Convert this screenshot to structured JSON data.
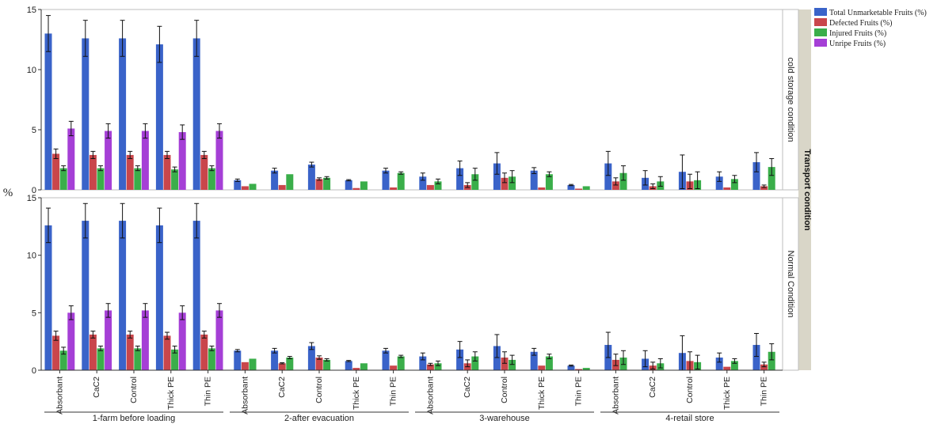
{
  "chart_data": {
    "type": "bar",
    "ylabel": "%",
    "ylim": [
      0,
      15
    ],
    "yticks": [
      0,
      5,
      10,
      15
    ],
    "grid": false,
    "legend_position": "top-right",
    "facet_label": "Transport condition",
    "groups": [
      {
        "label": "1-farm before loading",
        "categories": [
          "Absorbant",
          "CaC2",
          "Control",
          "Thick PE",
          "Thin PE"
        ]
      },
      {
        "label": "2-after evacuation",
        "categories": [
          "Absorbant",
          "CaC2",
          "Control",
          "Thick PE",
          "Thin PE"
        ]
      },
      {
        "label": "3-warehouse",
        "categories": [
          "Absorbant",
          "CaC2",
          "Control",
          "Thick PE",
          "Thin PE"
        ]
      },
      {
        "label": "4-retail store",
        "categories": [
          "Absorbant",
          "CaC2",
          "Control",
          "Thick PE",
          "Thin PE"
        ]
      }
    ],
    "series_meta": [
      {
        "name": "Total Unmarketable Fruits (%)",
        "color": "#3a63c9"
      },
      {
        "name": "Defected Fruits (%)",
        "color": "#c9464b"
      },
      {
        "name": "Injured Fruits (%)",
        "color": "#3aae4a"
      },
      {
        "name": "Unripe Fruits (%)",
        "color": "#a53fd6"
      }
    ],
    "panels": [
      {
        "label": "cold storage condition",
        "series": [
          {
            "name": "Total Unmarketable Fruits (%)",
            "values": [
              13.0,
              12.6,
              12.6,
              12.1,
              12.6,
              0.8,
              1.6,
              2.1,
              0.8,
              1.6,
              1.1,
              1.8,
              2.2,
              1.6,
              0.4,
              2.2,
              1.0,
              1.5,
              1.1,
              2.3
            ],
            "errors": [
              1.5,
              1.5,
              1.5,
              1.5,
              1.5,
              0.1,
              0.2,
              0.2,
              0.05,
              0.2,
              0.3,
              0.6,
              0.9,
              0.25,
              0.05,
              1.0,
              0.6,
              1.4,
              0.4,
              0.8
            ]
          },
          {
            "name": "Defected Fruits (%)",
            "values": [
              3.0,
              2.9,
              2.9,
              2.9,
              2.9,
              0.3,
              0.4,
              0.9,
              0.15,
              0.2,
              0.4,
              0.4,
              1.0,
              0.2,
              0.1,
              0.7,
              0.3,
              0.7,
              0.2,
              0.3
            ],
            "errors": [
              0.4,
              0.3,
              0.3,
              0.3,
              0.3,
              0.05,
              0.05,
              0.1,
              0.05,
              0.05,
              0.1,
              0.2,
              0.4,
              0.05,
              0.05,
              0.3,
              0.2,
              0.6,
              0.1,
              0.1
            ],
            "has_error": [
              true,
              true,
              true,
              true,
              true,
              false,
              false,
              true,
              false,
              false,
              false,
              true,
              true,
              false,
              false,
              true,
              true,
              true,
              false,
              true
            ]
          },
          {
            "name": "Injured Fruits (%)",
            "values": [
              1.8,
              1.8,
              1.8,
              1.7,
              1.8,
              0.5,
              1.3,
              1.0,
              0.7,
              1.4,
              0.7,
              1.3,
              1.1,
              1.3,
              0.3,
              1.4,
              0.7,
              0.8,
              0.9,
              1.9
            ],
            "errors": [
              0.2,
              0.2,
              0.2,
              0.2,
              0.2,
              0.05,
              0.1,
              0.1,
              0.05,
              0.1,
              0.2,
              0.5,
              0.5,
              0.2,
              0.05,
              0.6,
              0.4,
              0.7,
              0.3,
              0.7
            ],
            "has_error": [
              true,
              true,
              true,
              true,
              true,
              false,
              false,
              true,
              false,
              true,
              true,
              true,
              true,
              true,
              false,
              true,
              true,
              true,
              true,
              true
            ]
          },
          {
            "name": "Unripe Fruits (%)",
            "values": [
              5.1,
              4.9,
              4.9,
              4.8,
              4.9,
              null,
              null,
              null,
              null,
              null,
              null,
              null,
              null,
              null,
              null,
              null,
              null,
              null,
              null,
              null
            ],
            "errors": [
              0.6,
              0.6,
              0.6,
              0.6,
              0.6,
              null,
              null,
              null,
              null,
              null,
              null,
              null,
              null,
              null,
              null,
              null,
              null,
              null,
              null,
              null
            ]
          }
        ]
      },
      {
        "label": "Normal Condition",
        "series": [
          {
            "name": "Total Unmarketable Fruits (%)",
            "values": [
              12.6,
              13.0,
              13.0,
              12.6,
              13.0,
              1.7,
              1.7,
              2.1,
              0.8,
              1.7,
              1.2,
              1.8,
              2.1,
              1.6,
              0.4,
              2.2,
              1.0,
              1.5,
              1.1,
              2.2
            ],
            "errors": [
              1.5,
              1.5,
              1.5,
              1.5,
              1.5,
              0.1,
              0.2,
              0.3,
              0.05,
              0.2,
              0.3,
              0.7,
              1.0,
              0.3,
              0.05,
              1.1,
              0.7,
              1.5,
              0.4,
              1.0
            ]
          },
          {
            "name": "Defected Fruits (%)",
            "values": [
              3.0,
              3.1,
              3.1,
              3.0,
              3.1,
              0.7,
              0.6,
              1.1,
              0.2,
              0.4,
              0.5,
              0.6,
              1.1,
              0.4,
              0.1,
              0.9,
              0.4,
              0.8,
              0.3,
              0.5
            ],
            "errors": [
              0.4,
              0.3,
              0.3,
              0.3,
              0.3,
              0.05,
              0.05,
              0.15,
              0.05,
              0.05,
              0.1,
              0.3,
              0.5,
              0.05,
              0.05,
              0.5,
              0.3,
              0.8,
              0.1,
              0.2
            ],
            "has_error": [
              true,
              true,
              true,
              true,
              true,
              false,
              true,
              true,
              false,
              false,
              true,
              true,
              true,
              false,
              false,
              true,
              true,
              true,
              false,
              true
            ]
          },
          {
            "name": "Injured Fruits (%)",
            "values": [
              1.7,
              1.9,
              1.9,
              1.8,
              1.9,
              1.0,
              1.1,
              0.9,
              0.6,
              1.2,
              0.6,
              1.2,
              0.9,
              1.2,
              0.2,
              1.1,
              0.6,
              0.7,
              0.8,
              1.6
            ],
            "errors": [
              0.3,
              0.2,
              0.2,
              0.3,
              0.2,
              0.05,
              0.1,
              0.1,
              0.05,
              0.1,
              0.2,
              0.4,
              0.4,
              0.2,
              0.05,
              0.6,
              0.4,
              0.6,
              0.2,
              0.7
            ],
            "has_error": [
              true,
              true,
              true,
              true,
              true,
              false,
              true,
              true,
              false,
              true,
              true,
              true,
              true,
              true,
              false,
              true,
              true,
              true,
              true,
              true
            ]
          },
          {
            "name": "Unripe Fruits (%)",
            "values": [
              5.0,
              5.2,
              5.2,
              5.0,
              5.2,
              null,
              null,
              null,
              null,
              null,
              null,
              null,
              null,
              null,
              null,
              null,
              null,
              null,
              null,
              null
            ],
            "errors": [
              0.6,
              0.6,
              0.6,
              0.6,
              0.6,
              null,
              null,
              null,
              null,
              null,
              null,
              null,
              null,
              null,
              null,
              null,
              null,
              null,
              null,
              null
            ]
          }
        ]
      }
    ]
  }
}
